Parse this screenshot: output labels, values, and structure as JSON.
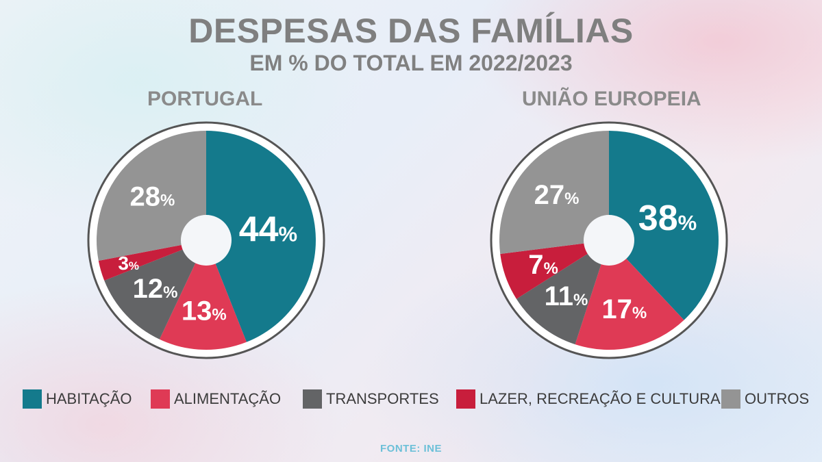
{
  "header": {
    "title": "DESPESAS DAS FAMÍLIAS",
    "subtitle": "EM % DO TOTAL EM 2022/2023"
  },
  "categories": [
    {
      "name": "HABITAÇÃO",
      "color": "#147a8c"
    },
    {
      "name": "ALIMENTAÇÃO",
      "color": "#df3a55"
    },
    {
      "name": "TRANSPORTES",
      "color": "#636466"
    },
    {
      "name": "LAZER, RECREAÇÃO E CULTURA",
      "color": "#c81e3c"
    },
    {
      "name": "OUTROS",
      "color": "#949494"
    }
  ],
  "chart_data": [
    {
      "type": "pie",
      "title": "PORTUGAL",
      "categories": [
        "HABITAÇÃO",
        "ALIMENTAÇÃO",
        "TRANSPORTES",
        "LAZER, RECREAÇÃO E CULTURA",
        "OUTROS"
      ],
      "values": [
        44,
        13,
        12,
        3,
        28
      ],
      "labels": [
        "44",
        "13",
        "12",
        "3",
        "28"
      ],
      "unit": "%",
      "legend": "bottom"
    },
    {
      "type": "pie",
      "title": "UNIÃO EUROPEIA",
      "categories": [
        "HABITAÇÃO",
        "ALIMENTAÇÃO",
        "TRANSPORTES",
        "LAZER, RECREAÇÃO E CULTURA",
        "OUTROS"
      ],
      "values": [
        38,
        17,
        11,
        7,
        27
      ],
      "labels": [
        "38",
        "17",
        "11",
        "7",
        "27"
      ],
      "unit": "%",
      "legend": "bottom"
    }
  ],
  "footer": {
    "source": "FONTE: INE"
  }
}
